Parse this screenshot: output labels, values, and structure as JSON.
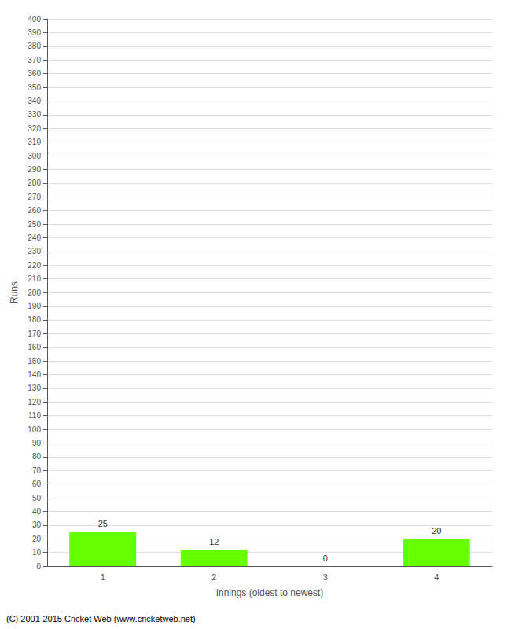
{
  "chart_data": {
    "type": "bar",
    "categories": [
      "1",
      "2",
      "3",
      "4"
    ],
    "values": [
      25,
      12,
      0,
      20
    ],
    "color": "#66ff00",
    "xlabel": "Innings (oldest to newest)",
    "ylabel": "Runs",
    "ylim": [
      0,
      400
    ],
    "yticks": [
      0,
      10,
      20,
      30,
      40,
      50,
      60,
      70,
      80,
      90,
      100,
      110,
      120,
      130,
      140,
      150,
      160,
      170,
      180,
      190,
      200,
      210,
      220,
      230,
      240,
      250,
      260,
      270,
      280,
      290,
      300,
      310,
      320,
      330,
      340,
      350,
      360,
      370,
      380,
      390,
      400
    ],
    "grid": true,
    "data_labels": true,
    "annotations": [
      "(C) 2001-2015 Cricket Web (www.cricketweb.net)"
    ]
  }
}
